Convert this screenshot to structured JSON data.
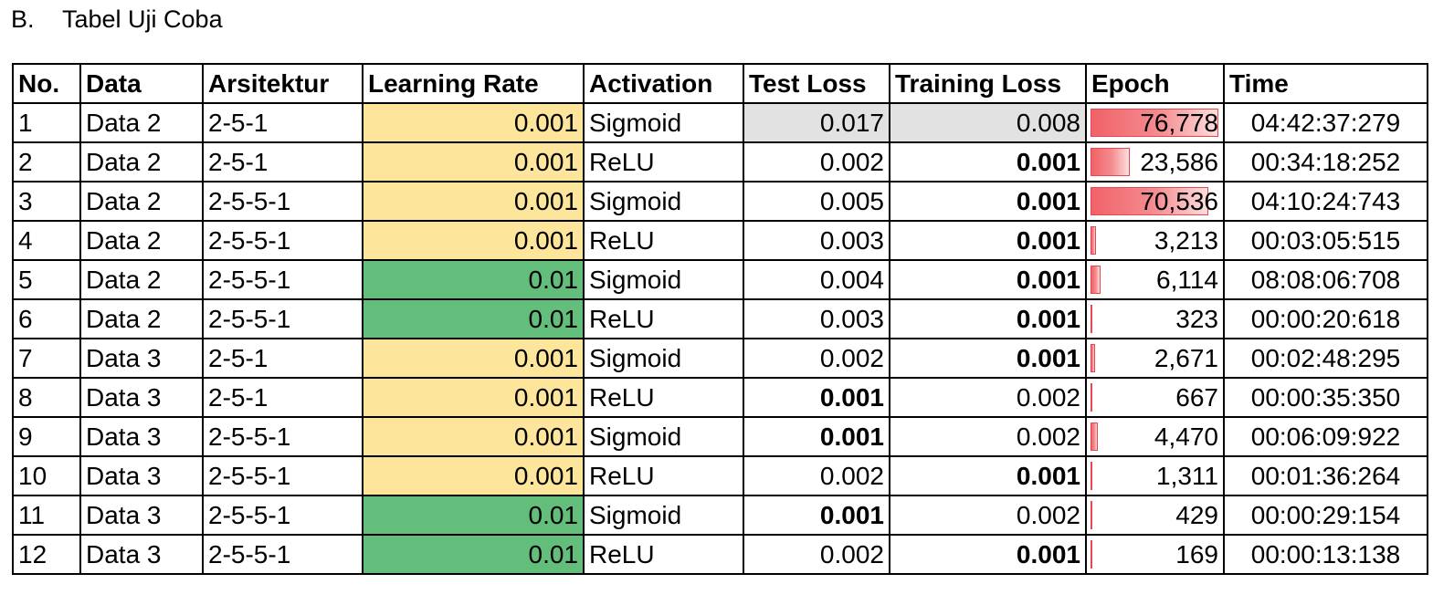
{
  "heading": {
    "number": "B.",
    "title": "Tabel Uji Coba"
  },
  "table": {
    "headers": [
      "No.",
      "Data",
      "Arsitektur",
      "Learning Rate",
      "Activation",
      "Test Loss",
      "Training Loss",
      "Epoch",
      "Time"
    ],
    "rows": [
      {
        "no": "1",
        "data": "Data 2",
        "arch": "2-5-1",
        "lr": "0.001",
        "lr_level": "low",
        "act": "Sigmoid",
        "test_loss": "0.017",
        "test_bold": false,
        "test_highlight": true,
        "train_loss": "0.008",
        "train_bold": false,
        "train_highlight": true,
        "epoch": "76,778",
        "epoch_fraction": 1.0,
        "time": "04:42:37:279"
      },
      {
        "no": "2",
        "data": "Data 2",
        "arch": "2-5-1",
        "lr": "0.001",
        "lr_level": "low",
        "act": "ReLU",
        "test_loss": "0.002",
        "test_bold": false,
        "test_highlight": false,
        "train_loss": "0.001",
        "train_bold": true,
        "train_highlight": false,
        "epoch": "23,586",
        "epoch_fraction": 0.307,
        "time": "00:34:18:252"
      },
      {
        "no": "3",
        "data": "Data 2",
        "arch": "2-5-5-1",
        "lr": "0.001",
        "lr_level": "low",
        "act": "Sigmoid",
        "test_loss": "0.005",
        "test_bold": false,
        "test_highlight": false,
        "train_loss": "0.001",
        "train_bold": true,
        "train_highlight": false,
        "epoch": "70,536",
        "epoch_fraction": 0.919,
        "time": "04:10:24:743"
      },
      {
        "no": "4",
        "data": "Data 2",
        "arch": "2-5-5-1",
        "lr": "0.001",
        "lr_level": "low",
        "act": "ReLU",
        "test_loss": "0.003",
        "test_bold": false,
        "test_highlight": false,
        "train_loss": "0.001",
        "train_bold": true,
        "train_highlight": false,
        "epoch": "3,213",
        "epoch_fraction": 0.042,
        "time": "00:03:05:515"
      },
      {
        "no": "5",
        "data": "Data 2",
        "arch": "2-5-5-1",
        "lr": "0.01",
        "lr_level": "high",
        "act": "Sigmoid",
        "test_loss": "0.004",
        "test_bold": false,
        "test_highlight": false,
        "train_loss": "0.001",
        "train_bold": true,
        "train_highlight": false,
        "epoch": "6,114",
        "epoch_fraction": 0.08,
        "time": "08:08:06:708"
      },
      {
        "no": "6",
        "data": "Data 2",
        "arch": "2-5-5-1",
        "lr": "0.01",
        "lr_level": "high",
        "act": "ReLU",
        "test_loss": "0.003",
        "test_bold": false,
        "test_highlight": false,
        "train_loss": "0.001",
        "train_bold": true,
        "train_highlight": false,
        "epoch": "323",
        "epoch_fraction": 0.004,
        "time": "00:00:20:618"
      },
      {
        "no": "7",
        "data": "Data 3",
        "arch": "2-5-1",
        "lr": "0.001",
        "lr_level": "low",
        "act": "Sigmoid",
        "test_loss": "0.002",
        "test_bold": false,
        "test_highlight": false,
        "train_loss": "0.001",
        "train_bold": true,
        "train_highlight": false,
        "epoch": "2,671",
        "epoch_fraction": 0.035,
        "time": "00:02:48:295"
      },
      {
        "no": "8",
        "data": "Data 3",
        "arch": "2-5-1",
        "lr": "0.001",
        "lr_level": "low",
        "act": "ReLU",
        "test_loss": "0.001",
        "test_bold": true,
        "test_highlight": false,
        "train_loss": "0.002",
        "train_bold": false,
        "train_highlight": false,
        "epoch": "667",
        "epoch_fraction": 0.009,
        "time": "00:00:35:350"
      },
      {
        "no": "9",
        "data": "Data 3",
        "arch": "2-5-5-1",
        "lr": "0.001",
        "lr_level": "low",
        "act": "Sigmoid",
        "test_loss": "0.001",
        "test_bold": true,
        "test_highlight": false,
        "train_loss": "0.002",
        "train_bold": false,
        "train_highlight": false,
        "epoch": "4,470",
        "epoch_fraction": 0.058,
        "time": "00:06:09:922"
      },
      {
        "no": "10",
        "data": "Data 3",
        "arch": "2-5-5-1",
        "lr": "0.001",
        "lr_level": "low",
        "act": "ReLU",
        "test_loss": "0.002",
        "test_bold": false,
        "test_highlight": false,
        "train_loss": "0.001",
        "train_bold": true,
        "train_highlight": false,
        "epoch": "1,311",
        "epoch_fraction": 0.017,
        "time": "00:01:36:264"
      },
      {
        "no": "11",
        "data": "Data 3",
        "arch": "2-5-5-1",
        "lr": "0.01",
        "lr_level": "high",
        "act": "Sigmoid",
        "test_loss": "0.001",
        "test_bold": true,
        "test_highlight": false,
        "train_loss": "0.002",
        "train_bold": false,
        "train_highlight": false,
        "epoch": "429",
        "epoch_fraction": 0.006,
        "time": "00:00:29:154"
      },
      {
        "no": "12",
        "data": "Data 3",
        "arch": "2-5-5-1",
        "lr": "0.01",
        "lr_level": "high",
        "act": "ReLU",
        "test_loss": "0.002",
        "test_bold": false,
        "test_highlight": false,
        "train_loss": "0.001",
        "train_bold": true,
        "train_highlight": false,
        "epoch": "169",
        "epoch_fraction": 0.002,
        "time": "00:00:13:138"
      }
    ]
  },
  "colors": {
    "lr_low": "#fde69b",
    "lr_high": "#63be7b",
    "loss_highlight": "#e2e2e2",
    "epoch_bar": "#f06268"
  }
}
